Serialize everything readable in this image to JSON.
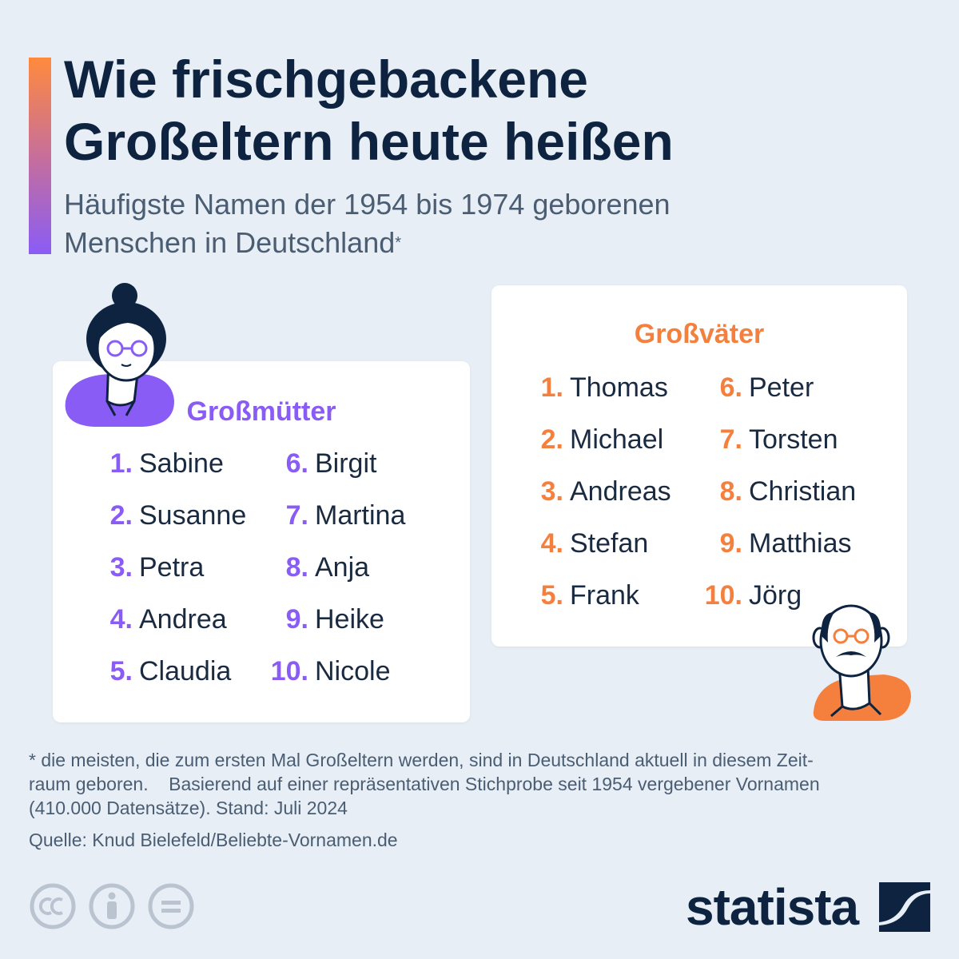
{
  "title_line1": "Wie frischgebackene",
  "title_line2": "Großeltern heute heißen",
  "subtitle_line1": "Häufigste Namen der 1954 bis 1974 geborenen",
  "subtitle_line2": "Menschen in Deutschland",
  "subtitle_marker": "*",
  "grandmothers": {
    "heading": "Großmütter",
    "names": [
      {
        "rank": "1.",
        "name": "Sabine"
      },
      {
        "rank": "2.",
        "name": "Susanne"
      },
      {
        "rank": "3.",
        "name": "Petra"
      },
      {
        "rank": "4.",
        "name": "Andrea"
      },
      {
        "rank": "5.",
        "name": "Claudia"
      },
      {
        "rank": "6.",
        "name": "Birgit"
      },
      {
        "rank": "7.",
        "name": "Martina"
      },
      {
        "rank": "8.",
        "name": "Anja"
      },
      {
        "rank": "9.",
        "name": "Heike"
      },
      {
        "rank": "10.",
        "name": "Nicole"
      }
    ]
  },
  "grandfathers": {
    "heading": "Großväter",
    "names": [
      {
        "rank": "1.",
        "name": "Thomas"
      },
      {
        "rank": "2.",
        "name": "Michael"
      },
      {
        "rank": "3.",
        "name": "Andreas"
      },
      {
        "rank": "4.",
        "name": "Stefan"
      },
      {
        "rank": "5.",
        "name": "Frank"
      },
      {
        "rank": "6.",
        "name": "Peter"
      },
      {
        "rank": "7.",
        "name": "Torsten"
      },
      {
        "rank": "8.",
        "name": "Christian"
      },
      {
        "rank": "9.",
        "name": "Matthias"
      },
      {
        "rank": "10.",
        "name": "Jörg"
      }
    ]
  },
  "footnote_line1": "* die meisten, die zum ersten Mal Großeltern werden, sind in Deutschland aktuell in diesem Zeit-",
  "footnote_line2": "raum geboren.    Basierend auf einer repräsentativen Stichprobe seit 1954 vergebener Vornamen",
  "footnote_line3": "(410.000 Datensätze). Stand: Juli 2024",
  "source": "Quelle: Knud Bielefeld/Beliebte-Vornamen.de",
  "logo_text": "statista",
  "license_icons": [
    "cc-icon",
    "attribution-icon",
    "no-derivatives-icon"
  ],
  "colors": {
    "grandmother_accent": "#8a5cf6",
    "grandfather_accent": "#f5803e",
    "title": "#0d2340",
    "background": "#e7eef5"
  }
}
